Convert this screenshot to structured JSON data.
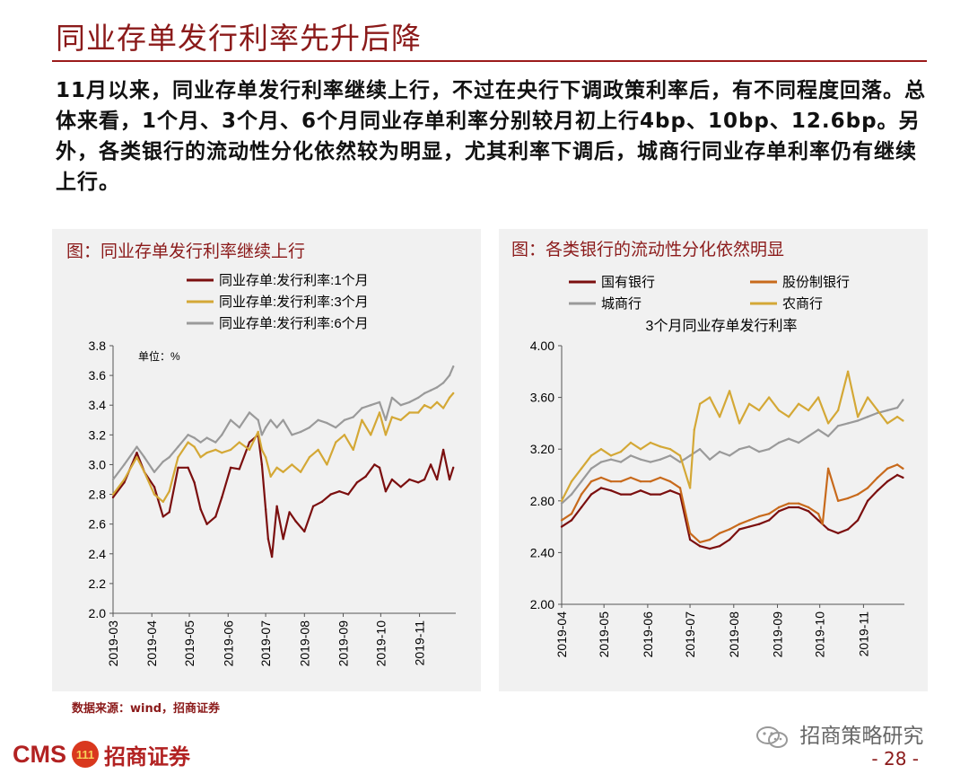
{
  "page": {
    "title": "同业存单发行利率先升后降",
    "body": "11月以来，同业存单发行利率继续上行，不过在央行下调政策利率后，有不同程度回落。总体来看，1个月、3个月、6个月同业存单利率分别较月初上行4bp、10bp、12.6bp。另外，各类银行的流动性分化依然较为明显，尤其利率下调后，城商行同业存单利率仍有继续上行。",
    "source": "数据来源：wind，招商证券",
    "wechat": "招商策略研究",
    "logo_cms": "CMS",
    "logo_badge": "111",
    "logo_cn": "招商证券",
    "page_number": "- 28 -"
  },
  "colors": {
    "brand": "#8b1a1a",
    "panel_bg": "#f1f1f1",
    "series_dark_red": "#7b0f0f",
    "series_gold": "#d4a836",
    "series_gray": "#9a9a9a",
    "series_orange": "#c86a1c"
  },
  "icons": [
    "wechat-icon",
    "cms-logo-icon"
  ],
  "chart_data": [
    {
      "type": "line",
      "panel_title": "图：同业存单发行利率继续上行",
      "title": "",
      "unit_note": "单位：%",
      "xlabel": "",
      "ylabel": "",
      "ylim": [
        2.0,
        3.8
      ],
      "yticks": [
        2.0,
        2.2,
        2.4,
        2.6,
        2.8,
        3.0,
        3.2,
        3.4,
        3.6,
        3.8
      ],
      "ytick_labels": [
        "2.0",
        "2.2",
        "2.4",
        "2.6",
        "2.8",
        "3.0",
        "3.2",
        "3.4",
        "3.6",
        "3.8"
      ],
      "xlim": [
        "2019-03-01",
        "2019-11-30"
      ],
      "xticks": [
        "2019-03-01",
        "2019-04-01",
        "2019-05-01",
        "2019-06-01",
        "2019-07-01",
        "2019-08-01",
        "2019-09-01",
        "2019-10-01",
        "2019-11-01"
      ],
      "xtick_labels": [
        "2019-03",
        "2019-04",
        "2019-05",
        "2019-06",
        "2019-07",
        "2019-08",
        "2019-09",
        "2019-10",
        "2019-11"
      ],
      "grid": false,
      "legend": "top-left",
      "series": [
        {
          "name": "同业存单:发行利率:1个月",
          "color": "#7b0f0f",
          "x": [
            "2019-03-01",
            "2019-03-10",
            "2019-03-20",
            "2019-03-26",
            "2019-04-03",
            "2019-04-10",
            "2019-04-15",
            "2019-04-22",
            "2019-04-30",
            "2019-05-05",
            "2019-05-10",
            "2019-05-15",
            "2019-05-22",
            "2019-05-27",
            "2019-06-03",
            "2019-06-10",
            "2019-06-18",
            "2019-06-25",
            "2019-06-28",
            "2019-07-01",
            "2019-07-03",
            "2019-07-06",
            "2019-07-10",
            "2019-07-15",
            "2019-07-20",
            "2019-07-25",
            "2019-08-01",
            "2019-08-08",
            "2019-08-15",
            "2019-08-22",
            "2019-08-29",
            "2019-09-05",
            "2019-09-12",
            "2019-09-19",
            "2019-09-26",
            "2019-09-30",
            "2019-10-05",
            "2019-10-10",
            "2019-10-17",
            "2019-10-24",
            "2019-10-31",
            "2019-11-05",
            "2019-11-10",
            "2019-11-15",
            "2019-11-20",
            "2019-11-25",
            "2019-11-28"
          ],
          "values": [
            2.78,
            2.88,
            3.08,
            2.95,
            2.85,
            2.65,
            2.68,
            2.98,
            2.98,
            2.88,
            2.7,
            2.6,
            2.65,
            2.78,
            2.98,
            2.97,
            3.15,
            3.2,
            3.0,
            2.7,
            2.5,
            2.38,
            2.72,
            2.5,
            2.68,
            2.62,
            2.55,
            2.72,
            2.75,
            2.8,
            2.82,
            2.8,
            2.88,
            2.92,
            3.0,
            2.98,
            2.82,
            2.9,
            2.85,
            2.9,
            2.88,
            2.9,
            3.0,
            2.9,
            3.1,
            2.9,
            2.98
          ]
        },
        {
          "name": "同业存单:发行利率:3个月",
          "color": "#d4a836",
          "x": [
            "2019-03-01",
            "2019-03-10",
            "2019-03-20",
            "2019-03-26",
            "2019-04-03",
            "2019-04-10",
            "2019-04-15",
            "2019-04-22",
            "2019-04-30",
            "2019-05-05",
            "2019-05-10",
            "2019-05-15",
            "2019-05-22",
            "2019-05-27",
            "2019-06-03",
            "2019-06-10",
            "2019-06-18",
            "2019-06-25",
            "2019-06-28",
            "2019-07-01",
            "2019-07-05",
            "2019-07-10",
            "2019-07-15",
            "2019-07-22",
            "2019-07-29",
            "2019-08-05",
            "2019-08-12",
            "2019-08-19",
            "2019-08-26",
            "2019-09-02",
            "2019-09-09",
            "2019-09-16",
            "2019-09-23",
            "2019-09-30",
            "2019-10-05",
            "2019-10-10",
            "2019-10-17",
            "2019-10-24",
            "2019-10-31",
            "2019-11-05",
            "2019-11-10",
            "2019-11-15",
            "2019-11-20",
            "2019-11-25",
            "2019-11-28"
          ],
          "values": [
            2.8,
            2.9,
            3.05,
            2.95,
            2.8,
            2.75,
            2.82,
            3.05,
            3.15,
            3.12,
            3.05,
            3.08,
            3.1,
            3.08,
            3.1,
            3.15,
            3.1,
            3.22,
            3.1,
            3.05,
            2.92,
            2.98,
            2.95,
            3.0,
            2.95,
            3.05,
            3.1,
            3.0,
            3.15,
            3.2,
            3.1,
            3.3,
            3.2,
            3.35,
            3.2,
            3.32,
            3.3,
            3.35,
            3.35,
            3.4,
            3.38,
            3.42,
            3.38,
            3.45,
            3.48
          ]
        },
        {
          "name": "同业存单:发行利率:6个月",
          "color": "#9a9a9a",
          "x": [
            "2019-03-01",
            "2019-03-10",
            "2019-03-20",
            "2019-03-26",
            "2019-04-03",
            "2019-04-10",
            "2019-04-15",
            "2019-04-22",
            "2019-04-30",
            "2019-05-05",
            "2019-05-10",
            "2019-05-15",
            "2019-05-22",
            "2019-05-27",
            "2019-06-03",
            "2019-06-10",
            "2019-06-18",
            "2019-06-25",
            "2019-06-28",
            "2019-07-01",
            "2019-07-05",
            "2019-07-10",
            "2019-07-15",
            "2019-07-22",
            "2019-07-29",
            "2019-08-05",
            "2019-08-12",
            "2019-08-19",
            "2019-08-26",
            "2019-09-02",
            "2019-09-09",
            "2019-09-16",
            "2019-09-23",
            "2019-09-30",
            "2019-10-05",
            "2019-10-10",
            "2019-10-17",
            "2019-10-24",
            "2019-10-31",
            "2019-11-05",
            "2019-11-10",
            "2019-11-15",
            "2019-11-20",
            "2019-11-25",
            "2019-11-28"
          ],
          "values": [
            2.9,
            3.0,
            3.12,
            3.05,
            2.95,
            3.02,
            3.05,
            3.12,
            3.2,
            3.18,
            3.15,
            3.18,
            3.15,
            3.2,
            3.3,
            3.25,
            3.35,
            3.3,
            3.2,
            3.25,
            3.3,
            3.25,
            3.3,
            3.2,
            3.22,
            3.25,
            3.3,
            3.28,
            3.25,
            3.3,
            3.32,
            3.38,
            3.4,
            3.42,
            3.3,
            3.45,
            3.4,
            3.42,
            3.45,
            3.48,
            3.5,
            3.52,
            3.55,
            3.6,
            3.66
          ]
        }
      ]
    },
    {
      "type": "line",
      "panel_title": "图：各类银行的流动性分化依然明显",
      "title": "3个月同业存单发行利率",
      "xlabel": "",
      "ylabel": "",
      "ylim": [
        2.0,
        4.0
      ],
      "yticks": [
        2.0,
        2.4,
        2.8,
        3.2,
        3.6,
        4.0
      ],
      "ytick_labels": [
        "2.00",
        "2.40",
        "2.80",
        "3.20",
        "3.60",
        "4.00"
      ],
      "xlim": [
        "2019-04-01",
        "2019-11-30"
      ],
      "xticks": [
        "2019-04-01",
        "2019-05-01",
        "2019-06-01",
        "2019-07-01",
        "2019-08-01",
        "2019-09-01",
        "2019-10-01",
        "2019-11-01"
      ],
      "xtick_labels": [
        "2019-04",
        "2019-05",
        "2019-06",
        "2019-07",
        "2019-08",
        "2019-09",
        "2019-10",
        "2019-11"
      ],
      "grid": false,
      "legend": "top",
      "series": [
        {
          "name": "国有银行",
          "color": "#7b0f0f",
          "x": [
            "2019-04-01",
            "2019-04-08",
            "2019-04-15",
            "2019-04-22",
            "2019-04-29",
            "2019-05-06",
            "2019-05-13",
            "2019-05-20",
            "2019-05-27",
            "2019-06-03",
            "2019-06-10",
            "2019-06-17",
            "2019-06-24",
            "2019-07-01",
            "2019-07-08",
            "2019-07-15",
            "2019-07-22",
            "2019-07-29",
            "2019-08-05",
            "2019-08-12",
            "2019-08-19",
            "2019-08-26",
            "2019-09-02",
            "2019-09-09",
            "2019-09-16",
            "2019-09-23",
            "2019-09-30",
            "2019-10-07",
            "2019-10-14",
            "2019-10-21",
            "2019-10-28",
            "2019-11-04",
            "2019-11-11",
            "2019-11-18",
            "2019-11-25",
            "2019-11-29"
          ],
          "values": [
            2.6,
            2.65,
            2.75,
            2.85,
            2.9,
            2.88,
            2.85,
            2.85,
            2.88,
            2.85,
            2.85,
            2.88,
            2.85,
            2.5,
            2.45,
            2.43,
            2.45,
            2.5,
            2.58,
            2.6,
            2.62,
            2.65,
            2.72,
            2.75,
            2.75,
            2.72,
            2.65,
            2.58,
            2.55,
            2.58,
            2.65,
            2.8,
            2.88,
            2.95,
            3.0,
            2.98
          ]
        },
        {
          "name": "股份制银行",
          "color": "#c86a1c",
          "x": [
            "2019-04-01",
            "2019-04-08",
            "2019-04-15",
            "2019-04-22",
            "2019-04-29",
            "2019-05-06",
            "2019-05-13",
            "2019-05-20",
            "2019-05-27",
            "2019-06-03",
            "2019-06-10",
            "2019-06-17",
            "2019-06-24",
            "2019-07-01",
            "2019-07-08",
            "2019-07-15",
            "2019-07-22",
            "2019-07-29",
            "2019-08-05",
            "2019-08-12",
            "2019-08-19",
            "2019-08-26",
            "2019-09-02",
            "2019-09-09",
            "2019-09-16",
            "2019-09-23",
            "2019-09-30",
            "2019-10-03",
            "2019-10-07",
            "2019-10-14",
            "2019-10-21",
            "2019-10-28",
            "2019-11-04",
            "2019-11-11",
            "2019-11-18",
            "2019-11-25",
            "2019-11-29"
          ],
          "values": [
            2.65,
            2.7,
            2.85,
            2.95,
            2.98,
            2.95,
            2.95,
            2.98,
            2.95,
            2.95,
            2.98,
            2.95,
            2.9,
            2.55,
            2.48,
            2.5,
            2.55,
            2.58,
            2.62,
            2.65,
            2.68,
            2.7,
            2.75,
            2.78,
            2.78,
            2.75,
            2.7,
            2.62,
            3.05,
            2.8,
            2.82,
            2.85,
            2.9,
            2.98,
            3.05,
            3.08,
            3.05
          ]
        },
        {
          "name": "城商行",
          "color": "#9a9a9a",
          "x": [
            "2019-04-01",
            "2019-04-08",
            "2019-04-15",
            "2019-04-22",
            "2019-04-29",
            "2019-05-06",
            "2019-05-13",
            "2019-05-20",
            "2019-05-27",
            "2019-06-03",
            "2019-06-10",
            "2019-06-17",
            "2019-06-24",
            "2019-07-01",
            "2019-07-08",
            "2019-07-15",
            "2019-07-22",
            "2019-07-29",
            "2019-08-05",
            "2019-08-12",
            "2019-08-19",
            "2019-08-26",
            "2019-09-02",
            "2019-09-09",
            "2019-09-16",
            "2019-09-23",
            "2019-09-30",
            "2019-10-07",
            "2019-10-14",
            "2019-10-21",
            "2019-10-28",
            "2019-11-04",
            "2019-11-11",
            "2019-11-18",
            "2019-11-25",
            "2019-11-29"
          ],
          "values": [
            2.78,
            2.85,
            2.95,
            3.05,
            3.1,
            3.12,
            3.1,
            3.15,
            3.12,
            3.1,
            3.12,
            3.15,
            3.1,
            3.15,
            3.2,
            3.12,
            3.18,
            3.15,
            3.2,
            3.22,
            3.18,
            3.2,
            3.25,
            3.28,
            3.25,
            3.3,
            3.35,
            3.3,
            3.38,
            3.4,
            3.42,
            3.45,
            3.48,
            3.5,
            3.52,
            3.58
          ]
        },
        {
          "name": "农商行",
          "color": "#d4a836",
          "x": [
            "2019-04-01",
            "2019-04-08",
            "2019-04-15",
            "2019-04-22",
            "2019-04-29",
            "2019-05-06",
            "2019-05-13",
            "2019-05-20",
            "2019-05-27",
            "2019-06-03",
            "2019-06-10",
            "2019-06-17",
            "2019-06-24",
            "2019-07-01",
            "2019-07-04",
            "2019-07-08",
            "2019-07-15",
            "2019-07-22",
            "2019-07-29",
            "2019-08-05",
            "2019-08-12",
            "2019-08-19",
            "2019-08-26",
            "2019-09-02",
            "2019-09-09",
            "2019-09-16",
            "2019-09-23",
            "2019-09-30",
            "2019-10-07",
            "2019-10-14",
            "2019-10-21",
            "2019-10-28",
            "2019-11-04",
            "2019-11-11",
            "2019-11-18",
            "2019-11-25",
            "2019-11-29"
          ],
          "values": [
            2.8,
            2.95,
            3.05,
            3.15,
            3.2,
            3.15,
            3.18,
            3.25,
            3.2,
            3.25,
            3.22,
            3.2,
            3.15,
            2.9,
            3.35,
            3.55,
            3.6,
            3.45,
            3.65,
            3.4,
            3.55,
            3.5,
            3.6,
            3.5,
            3.45,
            3.55,
            3.5,
            3.6,
            3.4,
            3.5,
            3.8,
            3.45,
            3.6,
            3.5,
            3.4,
            3.45,
            3.42
          ]
        }
      ]
    }
  ]
}
